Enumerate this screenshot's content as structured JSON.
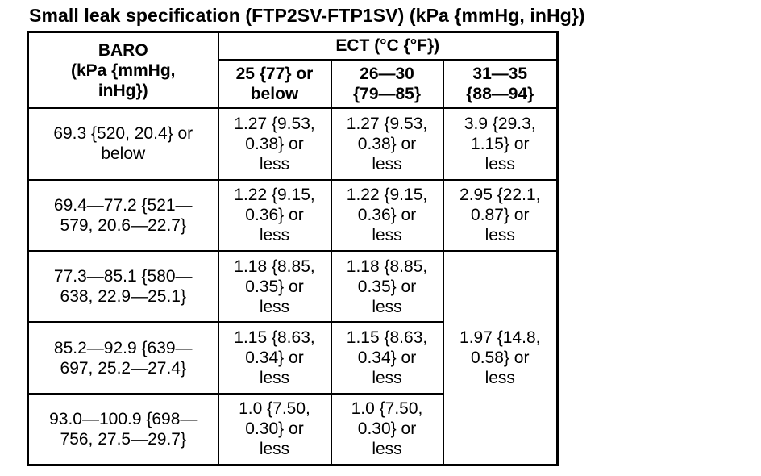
{
  "title": "Small leak specification  (FTP2SV-FTP1SV) (kPa {mmHg, inHg})",
  "table": {
    "baro_header": "BARO\n(kPa {mmHg,\ninHg})",
    "ect_header": "ECT (°C {°F})",
    "ect_columns": [
      "25 {77} or\nbelow",
      "26—30\n{79—85}",
      "31—35\n{88—94}"
    ],
    "rows": [
      {
        "baro": "69.3 {520, 20.4} or\nbelow",
        "c1": "1.27 {9.53,\n0.38} or\nless",
        "c2": "1.27 {9.53,\n0.38} or\nless",
        "c3": "3.9 {29.3,\n1.15} or\nless"
      },
      {
        "baro": "69.4—77.2 {521—\n579, 20.6—22.7}",
        "c1": "1.22 {9.15,\n0.36} or\nless",
        "c2": "1.22 {9.15,\n0.36} or\nless",
        "c3": "2.95 {22.1,\n0.87} or\nless"
      },
      {
        "baro": "77.3—85.1 {580—\n638, 22.9—25.1}",
        "c1": "1.18 {8.85,\n0.35} or\nless",
        "c2": "1.18 {8.85,\n0.35} or\nless"
      },
      {
        "baro": "85.2—92.9 {639—\n697, 25.2—27.4}",
        "c1": "1.15 {8.63,\n0.34} or\nless",
        "c2": "1.15 {8.63,\n0.34} or\nless"
      },
      {
        "baro": "93.0—100.9 {698—\n756, 27.5—29.7}",
        "c1": "1.0 {7.50,\n0.30} or\nless",
        "c2": "1.0 {7.50,\n0.30} or\nless"
      }
    ],
    "merged_c3_rows_3_to_5": "1.97 {14.8,\n0.58} or\nless"
  }
}
